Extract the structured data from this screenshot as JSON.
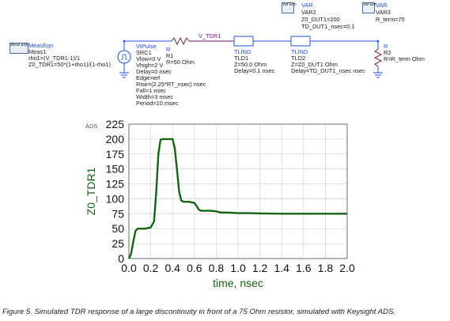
{
  "schematic": {
    "meas_eqn": {
      "icon_text": "Meas Eqn",
      "title": "MeasEqn",
      "name": "Meas1",
      "eq1": "rho1=(V_TDR1-1)/1",
      "eq2": "Z0_TDR1=50*(1+rho1)/(1-rho1)"
    },
    "source": {
      "type": "VtPulse",
      "name": "SRC1",
      "params": [
        "Vlow=0 V",
        "Vhigh=2 V",
        "Delay=0 nsec",
        "Edge=erf",
        "Rise=(2.25*RT_nsec) nsec",
        "Fall=1 nsec",
        "Width=3 msec",
        "Period=10 msec"
      ]
    },
    "resistor1": {
      "type": "R",
      "name": "R1",
      "value": "R=50 Ohm"
    },
    "node_label": "V_TDR1",
    "tline1": {
      "type": "TLIND",
      "name": "TLD1",
      "z": "Z=50.0 Ohm",
      "delay": "Delay=0.1 nsec"
    },
    "tline2": {
      "type": "TLIND",
      "name": "TLD2",
      "z": "Z=Z0_DUT1 Ohm",
      "delay": "Delay=TD_DUT1_nsec nsec"
    },
    "var2": {
      "icon_text": "Var Eqn",
      "title": "VAR",
      "name": "VAR2",
      "line1": "Z0_DUT1=200",
      "line2": "TD_DUT1_nsec=0.1"
    },
    "var3": {
      "icon_text": "Var Eqn",
      "title": "VAR",
      "name": "VAR3",
      "line1": "R_term=75"
    },
    "resistor2": {
      "type": "R",
      "name": "R2",
      "value": "R=R_term Ohm"
    }
  },
  "ads_tag": "ADS",
  "caption": "Figure 5. Simulated TDR response of a large discontinuity in front of a 75 Ohm resistor, simulated with Keysight ADS.",
  "chart_data": {
    "type": "line",
    "xlabel": "time, nsec",
    "ylabel": "Z0_TDR1",
    "xlim": [
      0.0,
      2.0
    ],
    "ylim": [
      0,
      225
    ],
    "xticks": [
      "0.0",
      "0.2",
      "0.4",
      "0.6",
      "0.8",
      "1.0",
      "1.2",
      "1.4",
      "1.6",
      "1.8",
      "2.0"
    ],
    "yticks": [
      "0",
      "25",
      "50",
      "75",
      "100",
      "125",
      "150",
      "175",
      "200",
      "225"
    ],
    "grid": true,
    "line_color": "#156415",
    "series": [
      {
        "x": [
          0.0,
          0.02,
          0.04,
          0.06,
          0.08,
          0.1,
          0.15,
          0.2,
          0.23,
          0.25,
          0.27,
          0.29,
          0.31,
          0.35,
          0.4,
          0.42,
          0.44,
          0.46,
          0.48,
          0.5,
          0.52,
          0.55,
          0.6,
          0.62,
          0.64,
          0.66,
          0.7,
          0.75,
          0.8,
          0.82,
          0.84,
          0.86,
          0.9,
          1.0,
          1.1,
          1.2,
          1.4,
          1.6,
          1.8,
          2.0
        ],
        "y": [
          0,
          8,
          28,
          46,
          50,
          50,
          50,
          52,
          62,
          110,
          175,
          199,
          200,
          200,
          200,
          185,
          150,
          112,
          97,
          95,
          95,
          95,
          93,
          88,
          82,
          80,
          80,
          80,
          79,
          78,
          77,
          77,
          77,
          76,
          76,
          75.5,
          75,
          75,
          75,
          75
        ]
      }
    ]
  }
}
